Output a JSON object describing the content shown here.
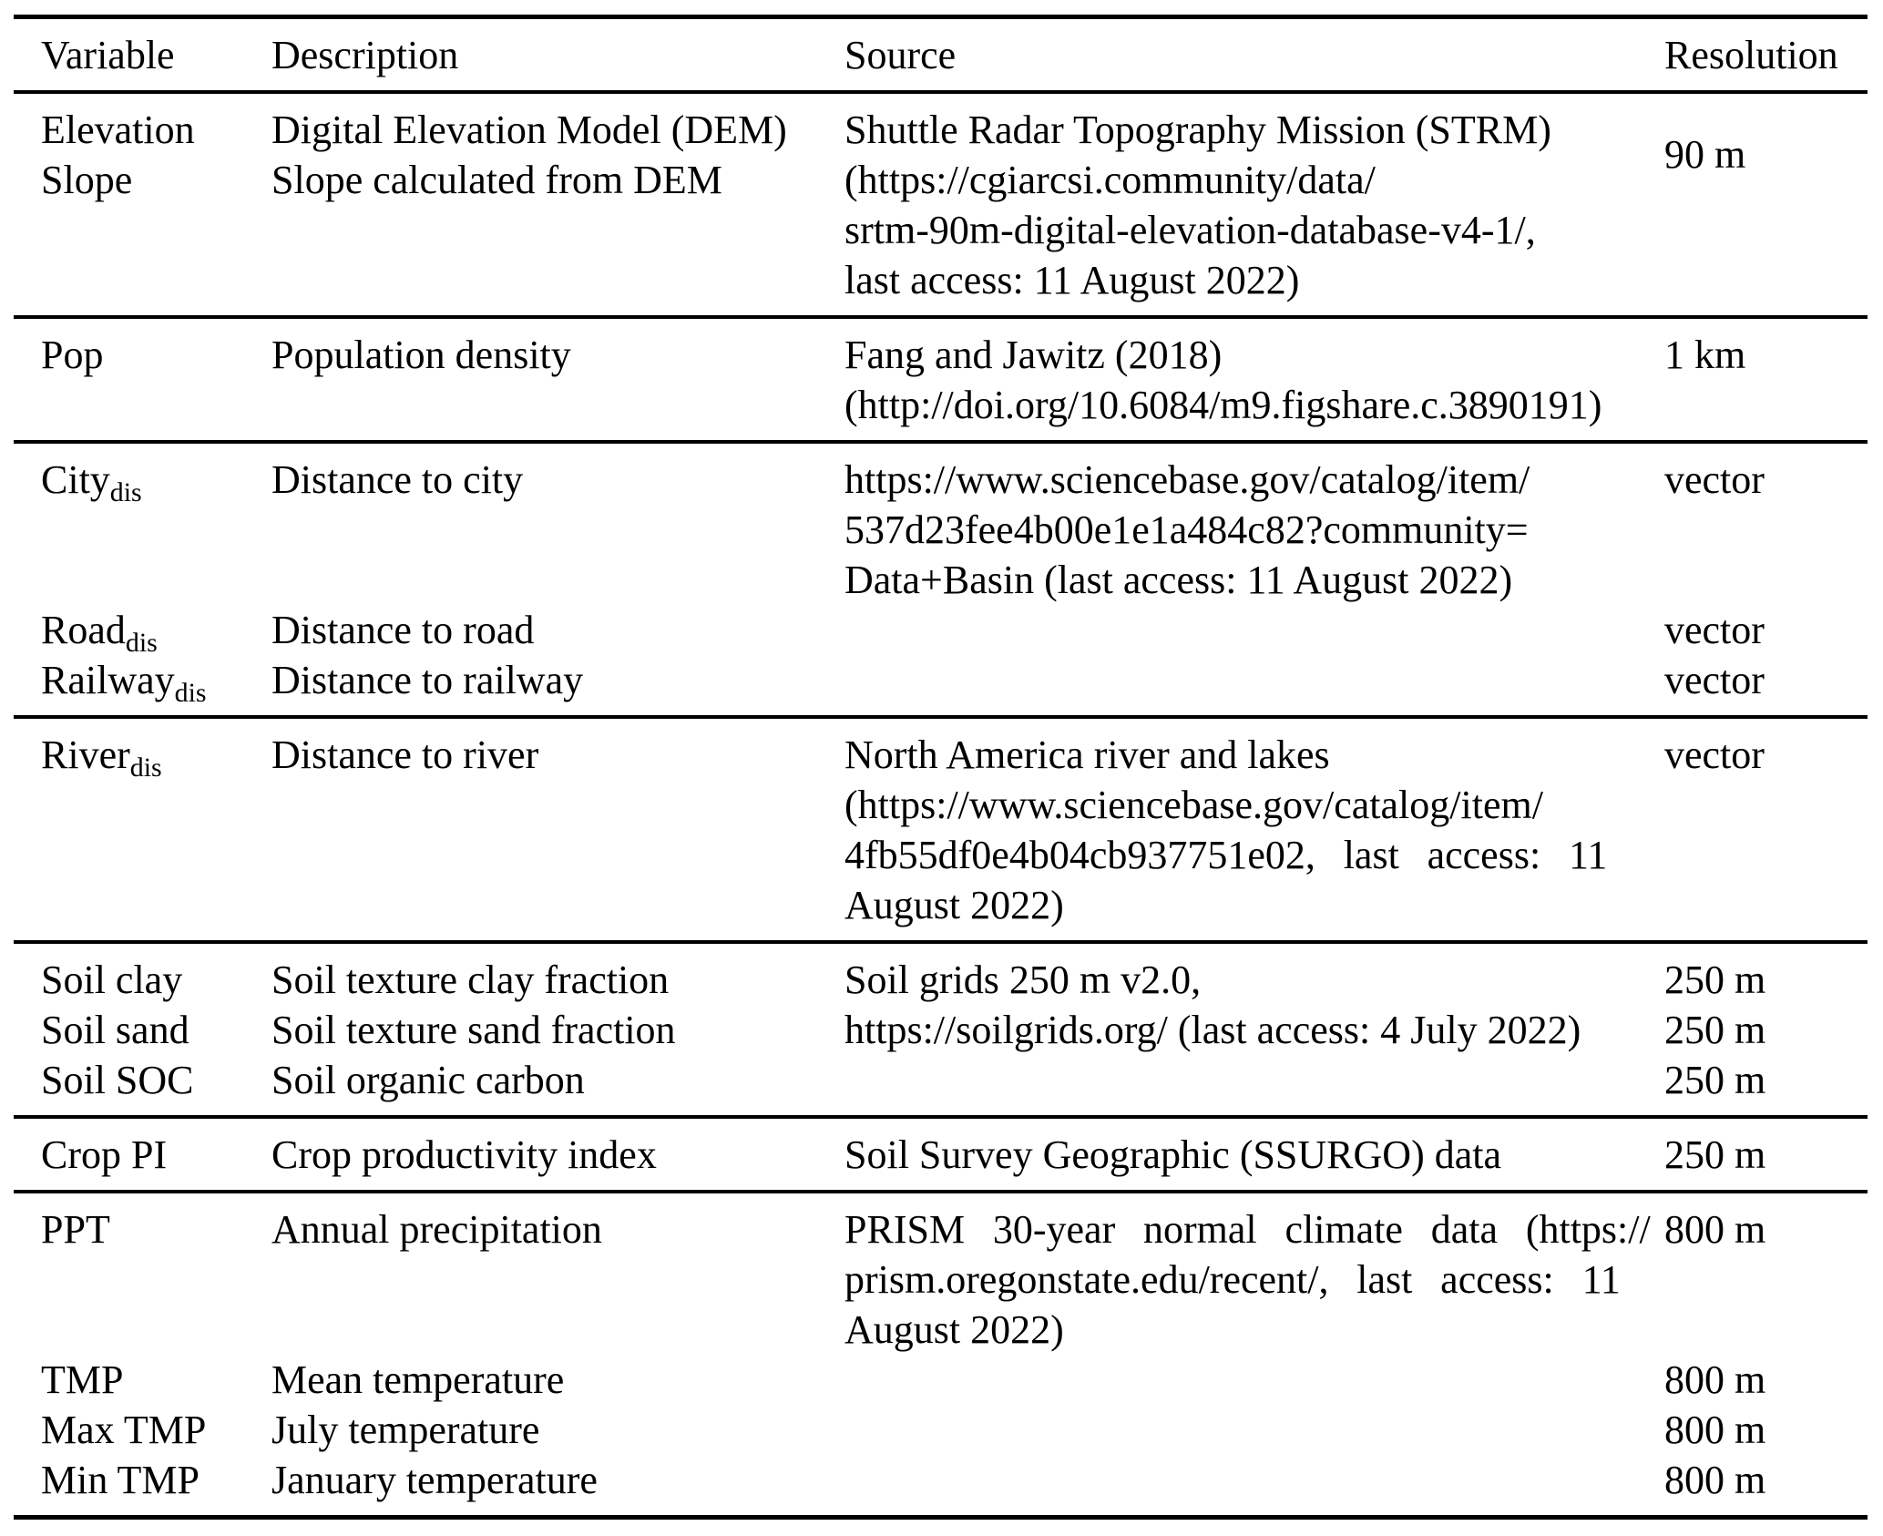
{
  "table": {
    "header": {
      "variable": "Variable",
      "description": "Description",
      "source": "Source",
      "resolution": "Resolution"
    },
    "sections": [
      {
        "id": "elevation-slope",
        "variables": [
          "Elevation",
          "Slope"
        ],
        "descriptions": [
          "Digital Elevation Model (DEM)",
          "Slope calculated from DEM"
        ],
        "source_lines": [
          "Shuttle Radar Topography Mission (STRM)",
          "(https://cgiarcsi.community/data/",
          "srtm-90m-digital-elevation-database-v4-1/,",
          "last access: 11 August 2022)"
        ],
        "resolutions": [
          "90 m"
        ]
      },
      {
        "id": "population",
        "variables": [
          "Pop"
        ],
        "descriptions": [
          "Population density"
        ],
        "source_lines": [
          "Fang and Jawitz (2018)",
          "(http://doi.org/10.6084/m9.figshare.c.3890191)"
        ],
        "resolutions": [
          "1 km"
        ]
      },
      {
        "id": "distances",
        "variables": [
          {
            "base": "City",
            "sub": "dis"
          },
          {
            "base": "Road",
            "sub": "dis"
          },
          {
            "base": "Railway",
            "sub": "dis"
          }
        ],
        "descriptions": [
          "Distance to city",
          "Distance to road",
          "Distance to railway"
        ],
        "source_lines": [
          "https://www.sciencebase.gov/catalog/item/",
          "537d23fee4b00e1e1a484c82?community=",
          "Data+Basin (last access: 11 August 2022)"
        ],
        "resolutions": [
          "vector",
          "vector",
          "vector"
        ]
      },
      {
        "id": "river",
        "variables": [
          {
            "base": "River",
            "sub": "dis"
          }
        ],
        "descriptions": [
          "Distance to river"
        ],
        "source_lines": [
          "North America river and lakes",
          "(https://www.sciencebase.gov/catalog/item/",
          "4fb55df0e4b04cb937751e02, last access: 11",
          "August 2022)"
        ],
        "resolutions": [
          "vector"
        ]
      },
      {
        "id": "soil",
        "variables": [
          "Soil clay",
          "Soil sand",
          "Soil SOC"
        ],
        "descriptions": [
          "Soil texture clay fraction",
          "Soil texture sand fraction",
          "Soil organic carbon"
        ],
        "source_lines": [
          "Soil grids 250 m v2.0,",
          "https://soilgrids.org/ (last access: 4 July 2022)"
        ],
        "resolutions": [
          "250 m",
          "250 m",
          "250 m"
        ]
      },
      {
        "id": "crop",
        "variables": [
          "Crop PI"
        ],
        "descriptions": [
          "Crop productivity index"
        ],
        "source_lines": [
          "Soil Survey Geographic (SSURGO) data"
        ],
        "resolutions": [
          "250 m"
        ]
      },
      {
        "id": "climate",
        "variables": [
          "PPT",
          "TMP",
          "Max TMP",
          "Min TMP"
        ],
        "descriptions": [
          "Annual precipitation",
          "Mean temperature",
          "July temperature",
          "January temperature"
        ],
        "source_lines": [
          "PRISM 30-year normal climate data (https://",
          "prism.oregonstate.edu/recent/, last access: 11",
          "August 2022)"
        ],
        "resolutions": [
          "800 m",
          "800 m",
          "800 m",
          "800 m"
        ]
      }
    ]
  }
}
